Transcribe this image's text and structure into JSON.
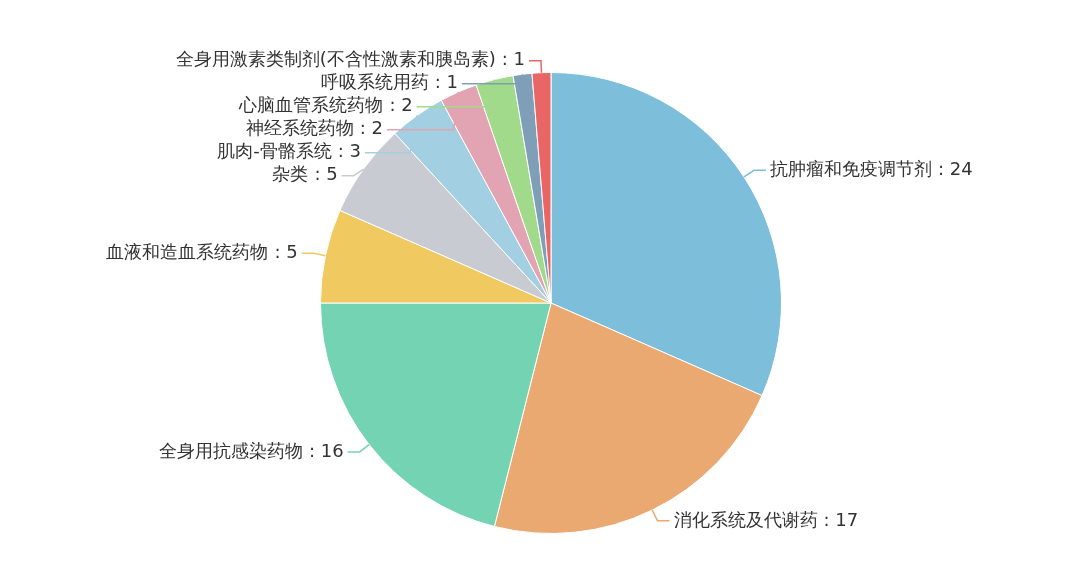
{
  "chart_data": {
    "type": "pie",
    "categories": [
      "抗肿瘤和免疫调节剂",
      "消化系统及代谢药",
      "全身用抗感染药物",
      "血液和造血系统药物",
      "杂类",
      "肌肉-骨骼系统",
      "神经系统药物",
      "心脑血管系统药物",
      "呼吸系统用药",
      "全身用激素类制剂(不含性激素和胰岛素)"
    ],
    "values": [
      24,
      17,
      16,
      5,
      5,
      3,
      2,
      2,
      1,
      1
    ],
    "colors": [
      "#7dbedb",
      "#eba972",
      "#74d3b2",
      "#f0c960",
      "#c8cbd2",
      "#a2cfe2",
      "#e2a3b3",
      "#a2da8b",
      "#7f9fb8",
      "#e96666"
    ],
    "value_labels": [
      ": 24",
      ": 17",
      ": 16",
      ": 5",
      ": 5",
      ": 3",
      ": 2",
      ": 2",
      ": 1",
      ": 1"
    ],
    "legend": false
  }
}
